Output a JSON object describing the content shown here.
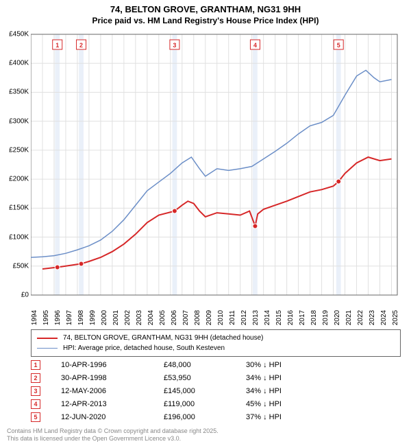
{
  "title": {
    "line1": "74, BELTON GROVE, GRANTHAM, NG31 9HH",
    "line2": "Price paid vs. HM Land Registry's House Price Index (HPI)"
  },
  "chart": {
    "type": "line",
    "background_color": "#ffffff",
    "plot_bg": "#ffffff",
    "grid_color": "#e0e0e0",
    "axis_color": "#666666",
    "xlim": [
      1994,
      2025.5
    ],
    "ylim": [
      0,
      450000
    ],
    "ytick_step": 50000,
    "yticks": [
      "£0",
      "£50K",
      "£100K",
      "£150K",
      "£200K",
      "£250K",
      "£300K",
      "£350K",
      "£400K",
      "£450K"
    ],
    "xticks": [
      1994,
      1995,
      1996,
      1997,
      1998,
      1999,
      2000,
      2001,
      2002,
      2003,
      2004,
      2005,
      2006,
      2007,
      2008,
      2009,
      2010,
      2011,
      2012,
      2013,
      2014,
      2015,
      2016,
      2017,
      2018,
      2019,
      2020,
      2021,
      2022,
      2023,
      2024,
      2025
    ],
    "highlight_bands": [
      {
        "x": 1996.28,
        "width": 0.4
      },
      {
        "x": 1998.33,
        "width": 0.4
      },
      {
        "x": 2006.36,
        "width": 0.4
      },
      {
        "x": 2013.28,
        "width": 0.4
      },
      {
        "x": 2020.45,
        "width": 0.4
      }
    ],
    "highlight_color": "#eaf0f9",
    "markers": [
      {
        "n": "1",
        "x": 1996.28,
        "y": 48000
      },
      {
        "n": "2",
        "x": 1998.33,
        "y": 53950
      },
      {
        "n": "3",
        "x": 2006.36,
        "y": 145000
      },
      {
        "n": "4",
        "x": 2013.28,
        "y": 119000
      },
      {
        "n": "5",
        "x": 2020.45,
        "y": 196000
      }
    ],
    "marker_box_color": "#d62728",
    "series": [
      {
        "name": "property",
        "color": "#d62728",
        "width": 2,
        "label": "74, BELTON GROVE, GRANTHAM, NG31 9HH (detached house)",
        "points": [
          [
            1995.0,
            45000
          ],
          [
            1996.28,
            48000
          ],
          [
            1997.0,
            50000
          ],
          [
            1998.33,
            53950
          ],
          [
            1999.0,
            58000
          ],
          [
            2000.0,
            65000
          ],
          [
            2001.0,
            75000
          ],
          [
            2002.0,
            88000
          ],
          [
            2003.0,
            105000
          ],
          [
            2004.0,
            125000
          ],
          [
            2005.0,
            138000
          ],
          [
            2006.36,
            145000
          ],
          [
            2007.0,
            155000
          ],
          [
            2007.5,
            162000
          ],
          [
            2008.0,
            158000
          ],
          [
            2008.5,
            145000
          ],
          [
            2009.0,
            135000
          ],
          [
            2010.0,
            142000
          ],
          [
            2011.0,
            140000
          ],
          [
            2012.0,
            138000
          ],
          [
            2012.8,
            145000
          ],
          [
            2013.28,
            119000
          ],
          [
            2013.5,
            140000
          ],
          [
            2014.0,
            148000
          ],
          [
            2015.0,
            155000
          ],
          [
            2016.0,
            162000
          ],
          [
            2017.0,
            170000
          ],
          [
            2018.0,
            178000
          ],
          [
            2019.0,
            182000
          ],
          [
            2020.0,
            188000
          ],
          [
            2020.45,
            196000
          ],
          [
            2021.0,
            210000
          ],
          [
            2022.0,
            228000
          ],
          [
            2023.0,
            238000
          ],
          [
            2024.0,
            232000
          ],
          [
            2025.0,
            235000
          ]
        ]
      },
      {
        "name": "hpi",
        "color": "#6b8ec7",
        "width": 1.5,
        "label": "HPI: Average price, detached house, South Kesteven",
        "points": [
          [
            1994.0,
            65000
          ],
          [
            1995.0,
            66000
          ],
          [
            1996.0,
            68000
          ],
          [
            1997.0,
            72000
          ],
          [
            1998.0,
            78000
          ],
          [
            1999.0,
            85000
          ],
          [
            2000.0,
            95000
          ],
          [
            2001.0,
            110000
          ],
          [
            2002.0,
            130000
          ],
          [
            2003.0,
            155000
          ],
          [
            2004.0,
            180000
          ],
          [
            2005.0,
            195000
          ],
          [
            2006.0,
            210000
          ],
          [
            2007.0,
            228000
          ],
          [
            2007.8,
            238000
          ],
          [
            2008.5,
            218000
          ],
          [
            2009.0,
            205000
          ],
          [
            2010.0,
            218000
          ],
          [
            2011.0,
            215000
          ],
          [
            2012.0,
            218000
          ],
          [
            2013.0,
            222000
          ],
          [
            2014.0,
            235000
          ],
          [
            2015.0,
            248000
          ],
          [
            2016.0,
            262000
          ],
          [
            2017.0,
            278000
          ],
          [
            2018.0,
            292000
          ],
          [
            2019.0,
            298000
          ],
          [
            2020.0,
            310000
          ],
          [
            2021.0,
            345000
          ],
          [
            2022.0,
            378000
          ],
          [
            2022.8,
            388000
          ],
          [
            2023.5,
            375000
          ],
          [
            2024.0,
            368000
          ],
          [
            2025.0,
            372000
          ]
        ]
      }
    ]
  },
  "legend": {
    "items": [
      {
        "color": "#d62728",
        "width": 2,
        "label": "74, BELTON GROVE, GRANTHAM, NG31 9HH (detached house)"
      },
      {
        "color": "#6b8ec7",
        "width": 1.5,
        "label": "HPI: Average price, detached house, South Kesteven"
      }
    ]
  },
  "table": {
    "rows": [
      {
        "n": "1",
        "date": "10-APR-1996",
        "price": "£48,000",
        "hpi": "30% ↓ HPI"
      },
      {
        "n": "2",
        "date": "30-APR-1998",
        "price": "£53,950",
        "hpi": "34% ↓ HPI"
      },
      {
        "n": "3",
        "date": "12-MAY-2006",
        "price": "£145,000",
        "hpi": "34% ↓ HPI"
      },
      {
        "n": "4",
        "date": "12-APR-2013",
        "price": "£119,000",
        "hpi": "45% ↓ HPI"
      },
      {
        "n": "5",
        "date": "12-JUN-2020",
        "price": "£196,000",
        "hpi": "37% ↓ HPI"
      }
    ]
  },
  "footer": {
    "line1": "Contains HM Land Registry data © Crown copyright and database right 2025.",
    "line2": "This data is licensed under the Open Government Licence v3.0."
  }
}
